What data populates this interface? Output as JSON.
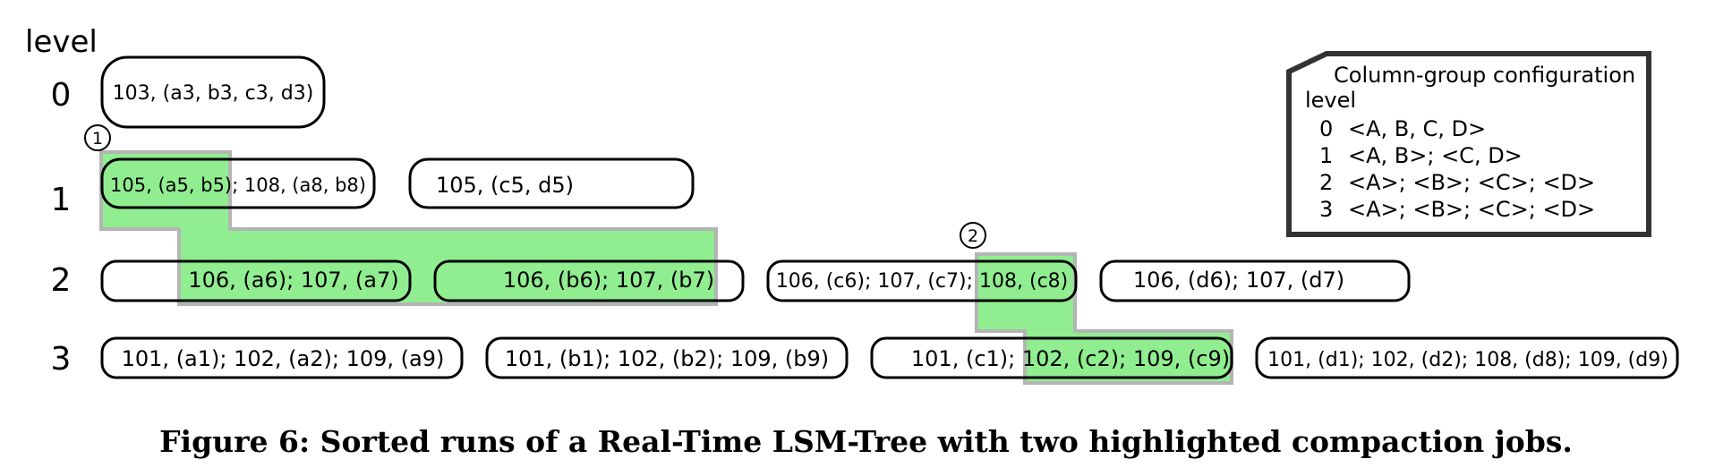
{
  "level_header": "level",
  "levels": [
    "0",
    "1",
    "2",
    "3"
  ],
  "runs": [
    {
      "id": "l0-abcd",
      "level": 0,
      "text": "103, (a3, b3, c3, d3)"
    },
    {
      "id": "l1-ab",
      "level": 1,
      "text": "105, (a5, b5); 108, (a8, b8)"
    },
    {
      "id": "l1-cd",
      "level": 1,
      "text": "105, (c5, d5)"
    },
    {
      "id": "l2-a",
      "level": 2,
      "text": "106, (a6); 107, (a7)"
    },
    {
      "id": "l2-b",
      "level": 2,
      "text": "106, (b6); 107, (b7)"
    },
    {
      "id": "l2-c",
      "level": 2,
      "text": "106, (c6); 107, (c7); 108, (c8)"
    },
    {
      "id": "l2-d",
      "level": 2,
      "text": "106, (d6); 107, (d7)"
    },
    {
      "id": "l3-a",
      "level": 3,
      "text": "101, (a1); 102, (a2); 109, (a9)"
    },
    {
      "id": "l3-b",
      "level": 3,
      "text": "101, (b1); 102, (b2); 109, (b9)"
    },
    {
      "id": "l3-c",
      "level": 3,
      "text": "101, (c1); 102, (c2); 109, (c9)"
    },
    {
      "id": "l3-d",
      "level": 3,
      "text": "101, (d1); 102, (d2); 108, (d8); 109, (d9)"
    }
  ],
  "compaction_jobs": [
    {
      "label": "1"
    },
    {
      "label": "2"
    }
  ],
  "config_note": {
    "title": "Column-group configuration",
    "subtitle": "level",
    "rows": [
      {
        "level": "0",
        "groups": "<A, B, C, D>"
      },
      {
        "level": "1",
        "groups": "<A, B>; <C, D>"
      },
      {
        "level": "2",
        "groups": "<A>; <B>; <C>; <D>"
      },
      {
        "level": "3",
        "groups": "<A>; <B>; <C>; <D>"
      }
    ]
  },
  "colors": {
    "highlight": "#90ee90",
    "highlight_border": "#b4b4b4",
    "box_border": "#000000",
    "note_border": "#333333"
  },
  "caption": "Figure 6: Sorted runs of a Real-Time LSM-Tree with two highlighted compaction jobs."
}
